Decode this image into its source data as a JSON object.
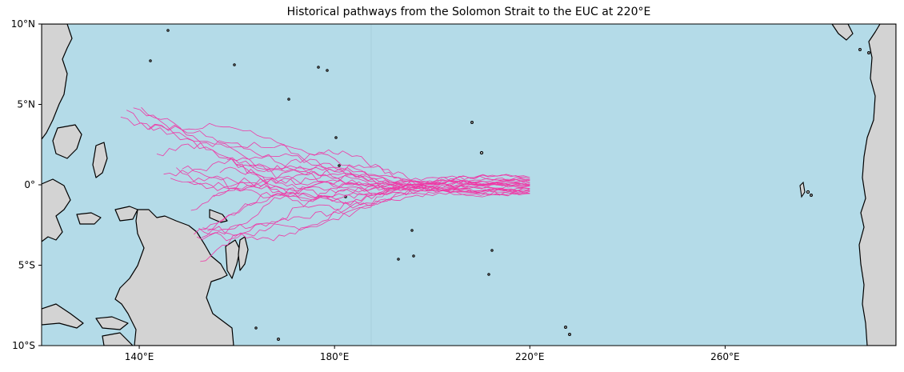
{
  "title": "Historical pathways from the Solomon Strait to the EUC at 220°E",
  "map": {
    "lon_range": [
      120,
      295
    ],
    "lat_range": [
      -10,
      10
    ],
    "ocean_color": "#b4dbe8",
    "land_color": "#d3d3d3",
    "coastline_color": "#000000",
    "pathway_color": "#ee3aa6",
    "x_ticks": [
      {
        "value": 140,
        "label": "140°E"
      },
      {
        "value": 180,
        "label": "180°E"
      },
      {
        "value": 220,
        "label": "220°E"
      },
      {
        "value": 260,
        "label": "260°E"
      }
    ],
    "y_ticks": [
      {
        "value": 10,
        "label": "10°N"
      },
      {
        "value": 5,
        "label": "5°N"
      },
      {
        "value": 0,
        "label": "0°"
      },
      {
        "value": -5,
        "label": "5°S"
      },
      {
        "value": -10,
        "label": "10°S"
      }
    ]
  }
}
